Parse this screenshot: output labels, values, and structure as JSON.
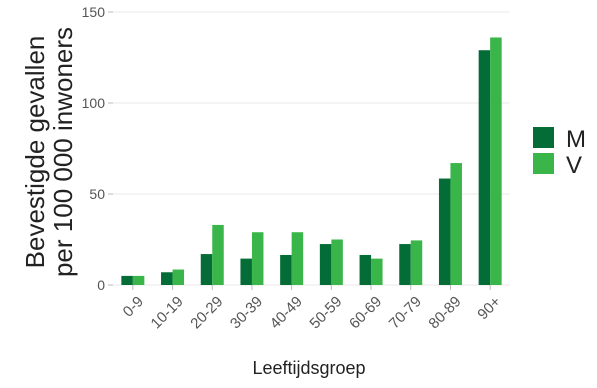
{
  "chart_data": {
    "type": "bar",
    "categories": [
      "0-9",
      "10-19",
      "20-29",
      "30-39",
      "40-49",
      "50-59",
      "60-69",
      "70-79",
      "80-89",
      "90+"
    ],
    "series": [
      {
        "name": "M",
        "color": "#046c37",
        "values": [
          5,
          7,
          17,
          14.5,
          16.5,
          22.5,
          16.5,
          22.5,
          58.5,
          129
        ]
      },
      {
        "name": "V",
        "color": "#3ab54a",
        "values": [
          5,
          8.5,
          33,
          29,
          29,
          25,
          14.5,
          24.5,
          67,
          136
        ]
      }
    ],
    "xlabel": "Leeftijdsgroep",
    "ylabel_line1": "Bevestigde gevallen",
    "ylabel_line2": "per 100 000 inwoners",
    "ylim": [
      0,
      150
    ],
    "yticks": [
      0,
      50,
      100,
      150
    ],
    "ytick_labels": [
      "0",
      "50",
      "100",
      "150"
    ],
    "grid": true,
    "legend_position": "right"
  }
}
